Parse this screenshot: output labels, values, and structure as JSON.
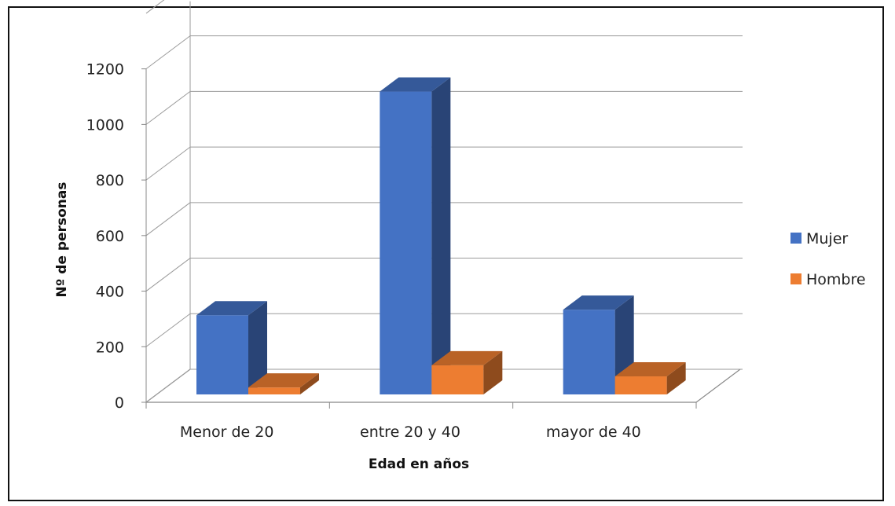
{
  "chart_data": {
    "type": "bar",
    "title": "",
    "xlabel": "Edad en años",
    "ylabel": "Nº de personas",
    "categories": [
      "Menor de 20",
      "entre 20 y 40",
      "mayor de 40"
    ],
    "series": [
      {
        "name": "Mujer",
        "values": [
          285,
          1090,
          305
        ],
        "color": "#4472c4"
      },
      {
        "name": "Hombre",
        "values": [
          25,
          105,
          65
        ],
        "color": "#ed7d31"
      }
    ],
    "ylim": [
      0,
      1200
    ],
    "yticks": [
      "0",
      "200",
      "400",
      "600",
      "800",
      "1000",
      "1200"
    ],
    "grid": true,
    "legend": "right",
    "three_d": true
  }
}
